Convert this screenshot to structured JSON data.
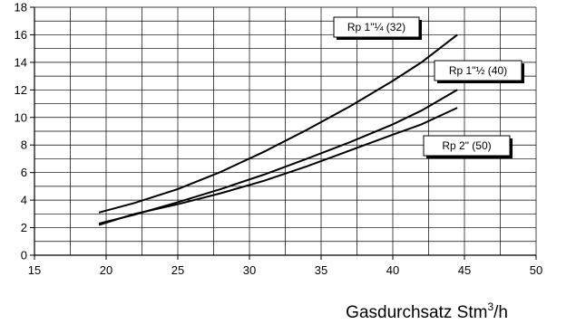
{
  "chart_data": {
    "type": "line",
    "title": "",
    "xlabel": "Gasdurchsatz Stm",
    "xlabel_sup": "3",
    "xlabel_suffix": "/h",
    "ylabel": "",
    "xlim": [
      15,
      50
    ],
    "ylim": [
      0,
      18
    ],
    "x_ticks": [
      "15",
      "20",
      "25",
      "30",
      "35",
      "40",
      "45",
      "50"
    ],
    "y_ticks": [
      "0",
      "2",
      "4",
      "6",
      "8",
      "10",
      "12",
      "14",
      "16",
      "18"
    ],
    "x_minor_step": 2.5,
    "y_minor_step": 1,
    "grid": true,
    "line_color": "#000000",
    "series": [
      {
        "name": "Rp 1\"¼ (32)",
        "x": [
          19.5,
          22,
          25,
          28,
          31,
          34,
          37,
          40,
          42,
          44.5
        ],
        "y": [
          3.1,
          3.8,
          4.8,
          6.05,
          7.5,
          9.1,
          10.8,
          12.65,
          14.0,
          16.0
        ]
      },
      {
        "name": "Rp 1\"½ (40)",
        "x": [
          19.5,
          22,
          25,
          28,
          31,
          34,
          37,
          40,
          42,
          44.5
        ],
        "y": [
          2.3,
          2.95,
          3.85,
          4.8,
          5.85,
          7.0,
          8.2,
          9.5,
          10.5,
          12.0
        ]
      },
      {
        "name": "Rp 2\" (50)",
        "x": [
          19.5,
          22,
          25,
          28,
          31,
          34,
          37,
          40,
          42,
          44.5
        ],
        "y": [
          2.2,
          3.0,
          3.7,
          4.5,
          5.4,
          6.45,
          7.6,
          8.75,
          9.5,
          10.7
        ]
      }
    ]
  }
}
